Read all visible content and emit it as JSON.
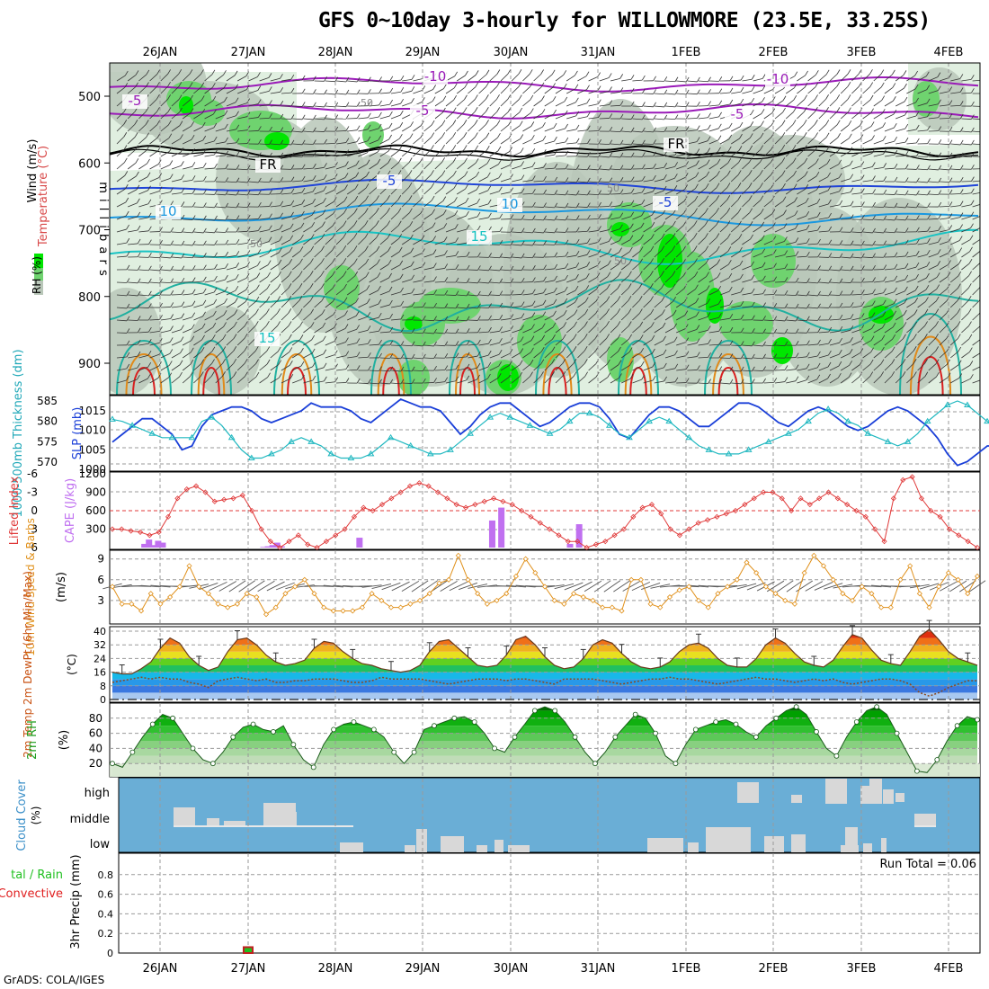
{
  "title": "GFS 0~10day 3-hourly for WILLOWMORE (23.5E, 33.25S)",
  "credit": "GrADS: COLA/IGES",
  "colors": {
    "rh_light": "#e0efe0",
    "rh_gray": "#b9c7b9",
    "rh_mid": "#6fd36f",
    "rh_bright": "#00e600",
    "temp_purple": "#9a1ab8",
    "temp_blue_dark": "#2044d8",
    "temp_blue": "#1a98e0",
    "temp_cyan": "#18c3c3",
    "temp_green": "#20b0a0",
    "temp_orange": "#e08a1a",
    "temp_red": "#d82020",
    "slp_line": "#1a3fd8",
    "thickness_line": "#20b8c0",
    "lifted_index": "#e03a3a",
    "cape_bar": "#c070f0",
    "wind_speed": "#e0901a",
    "barb": "#555555",
    "cloud_bg": "#6aaed6",
    "cloud_block": "#d8d8d8"
  },
  "chart_data": [
    {
      "panel": "upper_air",
      "type": "heatmap",
      "ylabel": "m i l l i b a r s",
      "side_labels": [
        "Wind (m/s)",
        "Temperature (°C)",
        "RH (%)"
      ],
      "x_dates": [
        "26JAN",
        "27JAN",
        "28JAN",
        "29JAN",
        "30JAN",
        "31JAN",
        "1FEB",
        "2FEB",
        "3FEB",
        "4FEB"
      ],
      "y_ticks": [
        500,
        600,
        700,
        800,
        900
      ],
      "y_range": [
        450,
        950
      ],
      "rh_contour_labels": [
        "50",
        "50",
        "50",
        "50"
      ],
      "temperature_contour_labels": [
        {
          "label": "-10",
          "p": 488
        },
        {
          "label": "-10",
          "p": 490
        },
        {
          "label": "-5",
          "p": 515
        },
        {
          "label": "-5",
          "p": 522
        },
        {
          "label": "-5",
          "p": 523
        },
        {
          "label": "FR",
          "p": 583
        },
        {
          "label": "FR",
          "p": 566
        },
        {
          "label": "-5",
          "p": 626
        },
        {
          "label": "-5",
          "p": 643
        },
        {
          "label": "10",
          "p": 679
        },
        {
          "label": "10",
          "p": 672
        },
        {
          "label": "15",
          "p": 710
        },
        {
          "label": "15",
          "p": 866
        }
      ]
    },
    {
      "panel": "slp_thickness",
      "type": "line",
      "left_label": "1000-500mb Thickness (dm)",
      "right_label": "SLP (mb)",
      "left_ticks": [
        570,
        575,
        580,
        585
      ],
      "right_ticks": [
        1000,
        1005,
        1010,
        1015
      ],
      "series": [
        {
          "name": "SLP",
          "axis": "right",
          "values": [
            1007,
            1009,
            1011,
            1013,
            1013,
            1011,
            1009,
            1005,
            1006,
            1011,
            1014,
            1015,
            1016,
            1016,
            1015,
            1013,
            1012,
            1013,
            1014,
            1015,
            1017,
            1016,
            1016,
            1016,
            1015,
            1013,
            1012,
            1014,
            1016,
            1018,
            1017,
            1016,
            1016,
            1015,
            1012,
            1009,
            1011,
            1014,
            1016,
            1017,
            1017,
            1015,
            1013,
            1011,
            1012,
            1014,
            1016,
            1017,
            1017,
            1016,
            1013,
            1009,
            1008,
            1011,
            1014,
            1016,
            1016,
            1015,
            1013,
            1011,
            1011,
            1013,
            1015,
            1017,
            1017,
            1016,
            1014,
            1012,
            1011,
            1013,
            1015,
            1016,
            1015,
            1013,
            1011,
            1010,
            1011,
            1013,
            1015,
            1016,
            1015,
            1013,
            1011,
            1008,
            1004,
            1001,
            1002,
            1004,
            1006,
            1006
          ]
        },
        {
          "name": "Thickness",
          "axis": "left",
          "values": [
            580.5,
            580,
            579,
            578,
            577,
            576,
            576,
            576,
            576,
            580,
            581,
            579,
            576,
            573,
            571,
            571,
            572,
            573,
            575,
            576,
            575,
            574,
            572,
            571,
            571,
            571,
            572,
            574,
            576,
            575,
            574,
            573,
            572,
            572,
            573,
            575,
            577,
            579,
            581,
            582,
            581,
            580,
            579,
            578,
            577,
            578,
            580,
            582,
            582,
            581,
            579,
            577,
            576,
            578,
            580,
            581,
            580,
            578,
            576,
            574,
            573,
            572,
            572,
            572,
            573,
            574,
            575,
            576,
            577,
            578,
            580,
            582,
            583,
            582,
            580,
            579,
            577,
            576,
            575,
            574,
            575,
            577,
            580,
            582,
            584,
            585,
            584,
            582,
            580,
            578,
            576
          ]
        }
      ]
    },
    {
      "panel": "lifted_index_cape",
      "type": "bar",
      "left_label": "Lifted Index",
      "right_label": "CAPE (J/kg)",
      "left_ticks": [
        -6,
        -3,
        0,
        3,
        6
      ],
      "right_ticks": [
        300,
        600,
        900,
        1200
      ],
      "series": [
        {
          "name": "Lifted Index",
          "axis": "left",
          "values": [
            3,
            3,
            3.3,
            3.5,
            4,
            3.5,
            1,
            -2,
            -3.5,
            -4,
            -3,
            -1.5,
            -1.8,
            -2,
            -2.5,
            0,
            3,
            5,
            6,
            5,
            4,
            5.5,
            6,
            5,
            4,
            3,
            1,
            -0.5,
            0,
            -1,
            -2,
            -3,
            -4,
            -4.5,
            -4,
            -3,
            -2,
            -1,
            -0.5,
            -1,
            -1.5,
            -2,
            -1.5,
            -1,
            0,
            1,
            2,
            3,
            4,
            5,
            5,
            6,
            5.5,
            5,
            4,
            3,
            1,
            -0.5,
            -1,
            0.5,
            3,
            4,
            3,
            2,
            1.5,
            1,
            0.5,
            0,
            -1,
            -2,
            -3,
            -3,
            -2,
            0,
            -2,
            -1,
            -2,
            -3,
            -2,
            -1,
            0,
            1,
            3,
            5,
            -2,
            -5,
            -5.5,
            -2,
            0,
            1,
            3,
            4,
            5,
            6
          ]
        },
        {
          "name": "CAPE",
          "axis": "right",
          "values": [
            0,
            0,
            0,
            0,
            0,
            0,
            0,
            60,
            130,
            40,
            110,
            80,
            0,
            0,
            0,
            0,
            0,
            0,
            0,
            0,
            0,
            0,
            0,
            0,
            0,
            0,
            0,
            0,
            0,
            0,
            0,
            0,
            0,
            10,
            20,
            40,
            80,
            20,
            0,
            0,
            0,
            0,
            0,
            0,
            0,
            0,
            0,
            0,
            0,
            0,
            0,
            0,
            0,
            0,
            160,
            0,
            0,
            0,
            0,
            0,
            0,
            0,
            0,
            0,
            0,
            0,
            0,
            0,
            0,
            0,
            0,
            0,
            0,
            0,
            0,
            0,
            0,
            0,
            0,
            0,
            0,
            0,
            0,
            440,
            0,
            650,
            0,
            0,
            0,
            0,
            0,
            0,
            0,
            0,
            0,
            0,
            0,
            0,
            0,
            0,
            60,
            0,
            380,
            0,
            0,
            0,
            0,
            0,
            0,
            0,
            0,
            0,
            0,
            0,
            0,
            0,
            0,
            0,
            0,
            0,
            0,
            0,
            0,
            0,
            0,
            0,
            0,
            0,
            0,
            0,
            0,
            0,
            0,
            0,
            0,
            0,
            0,
            0,
            0,
            0,
            0,
            0,
            0,
            0,
            0,
            0,
            0,
            0,
            0,
            0,
            0,
            0,
            0,
            0,
            0,
            0,
            0,
            0,
            0,
            0,
            0,
            0,
            0,
            0,
            0,
            0,
            0,
            0,
            0,
            0,
            0,
            0,
            0,
            0,
            0,
            0,
            0,
            0,
            0,
            0,
            0,
            0,
            0,
            0,
            0,
            0,
            0,
            0,
            0,
            0
          ]
        }
      ]
    },
    {
      "panel": "wind10m",
      "type": "line",
      "left_label": "10m Wind Speed & Barbs",
      "unit_label": "(m/s)",
      "y_ticks": [
        3,
        6,
        9
      ],
      "series": [
        {
          "name": "10m Wind Speed",
          "values": [
            5,
            2.5,
            2.5,
            1.5,
            4,
            2.5,
            3.5,
            5,
            8,
            5,
            4,
            2.5,
            2,
            2.5,
            4,
            3.5,
            1,
            2,
            4,
            5,
            6,
            4,
            2,
            1.5,
            1.5,
            1.5,
            2,
            4,
            3,
            2,
            2,
            2.5,
            3,
            4,
            5.5,
            6,
            9.5,
            6,
            4,
            2.5,
            3,
            4,
            6.5,
            9,
            7,
            5,
            3,
            2.5,
            4,
            3.5,
            3,
            2,
            2,
            1.5,
            6,
            6,
            2.5,
            2,
            3.5,
            4.5,
            5,
            3,
            2,
            4,
            5,
            6,
            8.5,
            7,
            5,
            4,
            3,
            2.5,
            7,
            9.5,
            8,
            6,
            4,
            3,
            5,
            4,
            2,
            2,
            6,
            8,
            4,
            2,
            5,
            7,
            6,
            4,
            6.5
          ]
        }
      ]
    },
    {
      "panel": "temperature2m",
      "type": "area",
      "left_label": "2m Temp 2m DewPt (6hr Min/Max)",
      "unit_label": "(°C)",
      "y_ticks": [
        0,
        8,
        16,
        24,
        32,
        40
      ],
      "series": [
        {
          "name": "2m Temp",
          "values": [
            16,
            15,
            15,
            18,
            22,
            30,
            36,
            33,
            25,
            20,
            17,
            19,
            28,
            35,
            36,
            32,
            26,
            22,
            20,
            21,
            23,
            30,
            34,
            33,
            28,
            24,
            21,
            20,
            18,
            17,
            16,
            17,
            20,
            28,
            34,
            35,
            30,
            25,
            20,
            19,
            20,
            26,
            35,
            37,
            32,
            25,
            20,
            18,
            19,
            24,
            32,
            35,
            33,
            27,
            22,
            19,
            18,
            19,
            22,
            28,
            32,
            33,
            30,
            24,
            20,
            19,
            19,
            24,
            32,
            36,
            33,
            27,
            22,
            20,
            19,
            23,
            31,
            38,
            36,
            29,
            23,
            21,
            20,
            28,
            37,
            41,
            35,
            28,
            24,
            22,
            20
          ]
        },
        {
          "name": "2m DewPt",
          "values": [
            10,
            11,
            12,
            13,
            12,
            13,
            12,
            12,
            10,
            9,
            7,
            11,
            12,
            13,
            12,
            11,
            12,
            10,
            10,
            11,
            11,
            12,
            12,
            12,
            11,
            10,
            10,
            11,
            13,
            12,
            12,
            12,
            12,
            11,
            10,
            9,
            10,
            11,
            12,
            12,
            12,
            11,
            12,
            12,
            11,
            10,
            9,
            12,
            12,
            12,
            12,
            11,
            10,
            9,
            10,
            11,
            12,
            12,
            13,
            12,
            12,
            11,
            10,
            9,
            10,
            11,
            12,
            13,
            12,
            12,
            11,
            10,
            11,
            12,
            11,
            12,
            10,
            9,
            10,
            11,
            12,
            12,
            11,
            9,
            4,
            2,
            4,
            7,
            9,
            11,
            11
          ]
        }
      ]
    },
    {
      "panel": "rh2m",
      "type": "area",
      "left_label": "2m RH",
      "unit_label": "(%)",
      "y_ticks": [
        20,
        40,
        60,
        80
      ],
      "series": [
        {
          "name": "2m RH",
          "values": [
            20,
            15,
            35,
            55,
            72,
            85,
            80,
            60,
            40,
            25,
            20,
            35,
            55,
            68,
            72,
            65,
            62,
            70,
            45,
            25,
            15,
            45,
            65,
            72,
            75,
            70,
            65,
            55,
            35,
            20,
            35,
            65,
            70,
            75,
            80,
            82,
            75,
            60,
            40,
            35,
            55,
            72,
            90,
            95,
            90,
            75,
            55,
            35,
            20,
            35,
            55,
            70,
            85,
            80,
            60,
            30,
            20,
            45,
            65,
            70,
            75,
            78,
            72,
            62,
            55,
            70,
            80,
            90,
            95,
            85,
            62,
            40,
            30,
            55,
            75,
            90,
            95,
            85,
            60,
            35,
            10,
            8,
            25,
            50,
            70,
            82,
            78
          ]
        }
      ]
    },
    {
      "panel": "cloud_cover",
      "type": "bar",
      "left_label": "Cloud Cover",
      "unit_label": "(%)",
      "levels": [
        "high",
        "middle",
        "low"
      ]
    },
    {
      "panel": "precip",
      "type": "bar",
      "left_label": "3hr Precip (mm)",
      "legend_total": "tal / Rain",
      "legend_convective": "Convective",
      "run_total": "Run Total = 0.06",
      "y_ticks": [
        0,
        0.2,
        0.4,
        0.6,
        0.8
      ],
      "x_dates": [
        "26JAN",
        "27JAN",
        "28JAN",
        "29JAN",
        "30JAN",
        "31JAN",
        "1FEB",
        "2FEB",
        "3FEB",
        "4FEB"
      ],
      "series": [
        {
          "name": "Rain",
          "date": "27JAN",
          "value": 0.06
        }
      ]
    }
  ]
}
